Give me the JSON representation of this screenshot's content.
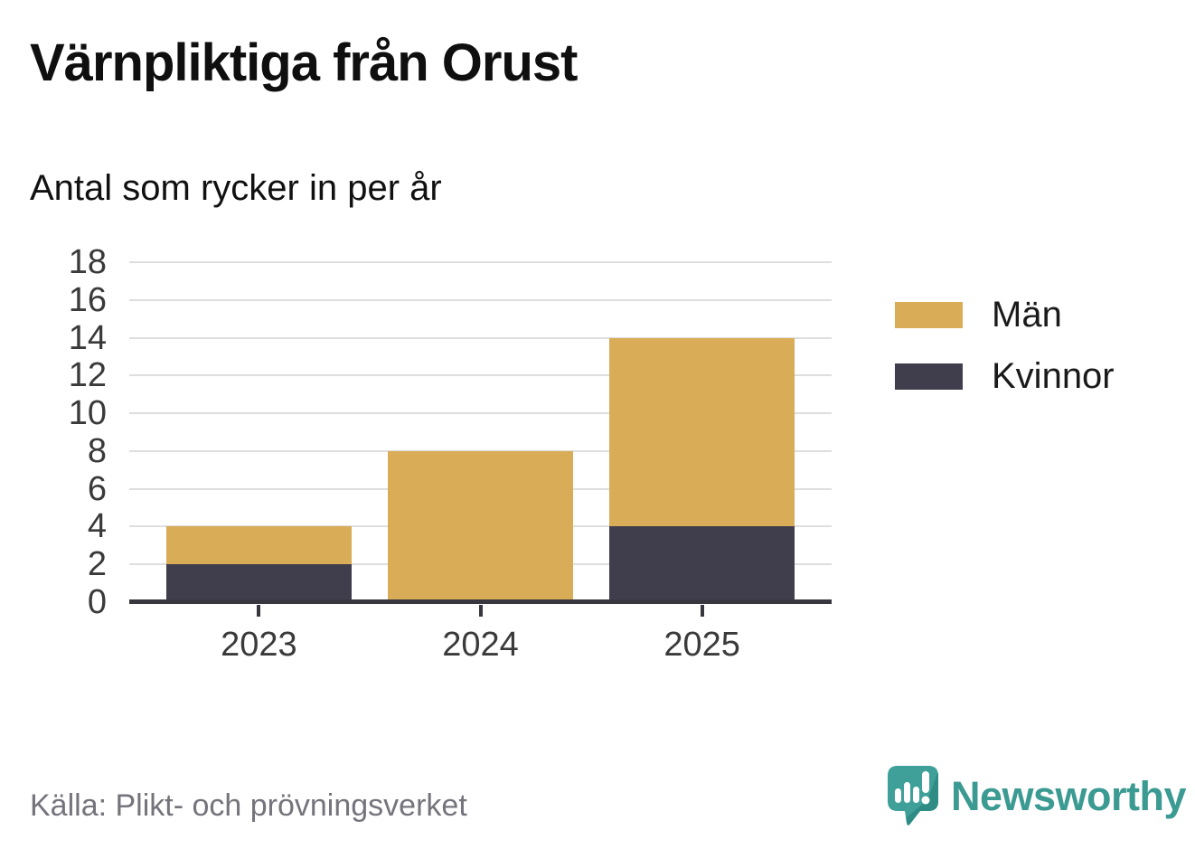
{
  "header": {
    "title": "Värnpliktiga från Orust",
    "subtitle": "Antal som rycker in per år"
  },
  "chart_data": {
    "type": "bar",
    "stacked": true,
    "title": "Värnpliktiga från Orust",
    "subtitle": "Antal som rycker in per år",
    "categories": [
      "2023",
      "2024",
      "2025"
    ],
    "series": [
      {
        "name": "Kvinnor",
        "color": "#403e4c",
        "values": [
          2,
          0,
          4
        ]
      },
      {
        "name": "Män",
        "color": "#d9ac58",
        "values": [
          2,
          8,
          10
        ]
      }
    ],
    "totals": [
      4,
      8,
      14
    ],
    "xlabel": "",
    "ylabel": "",
    "ylim": [
      0,
      18
    ],
    "ytick_step": 2,
    "grid": true,
    "legend_position": "right"
  },
  "legend": {
    "items": [
      {
        "label": "Män",
        "color": "#d9ac58"
      },
      {
        "label": "Kvinnor",
        "color": "#403e4c"
      }
    ]
  },
  "footer": {
    "source": "Källa: Plikt- och prövningsverket",
    "brand": "Newsworthy",
    "brand_color": "#3b9a92"
  },
  "colors": {
    "men": "#d9ac58",
    "women": "#403e4c",
    "axis": "#38373f",
    "gridline": "#dedede",
    "source_text": "#75747c",
    "brand_teal": "#3b9a92"
  }
}
